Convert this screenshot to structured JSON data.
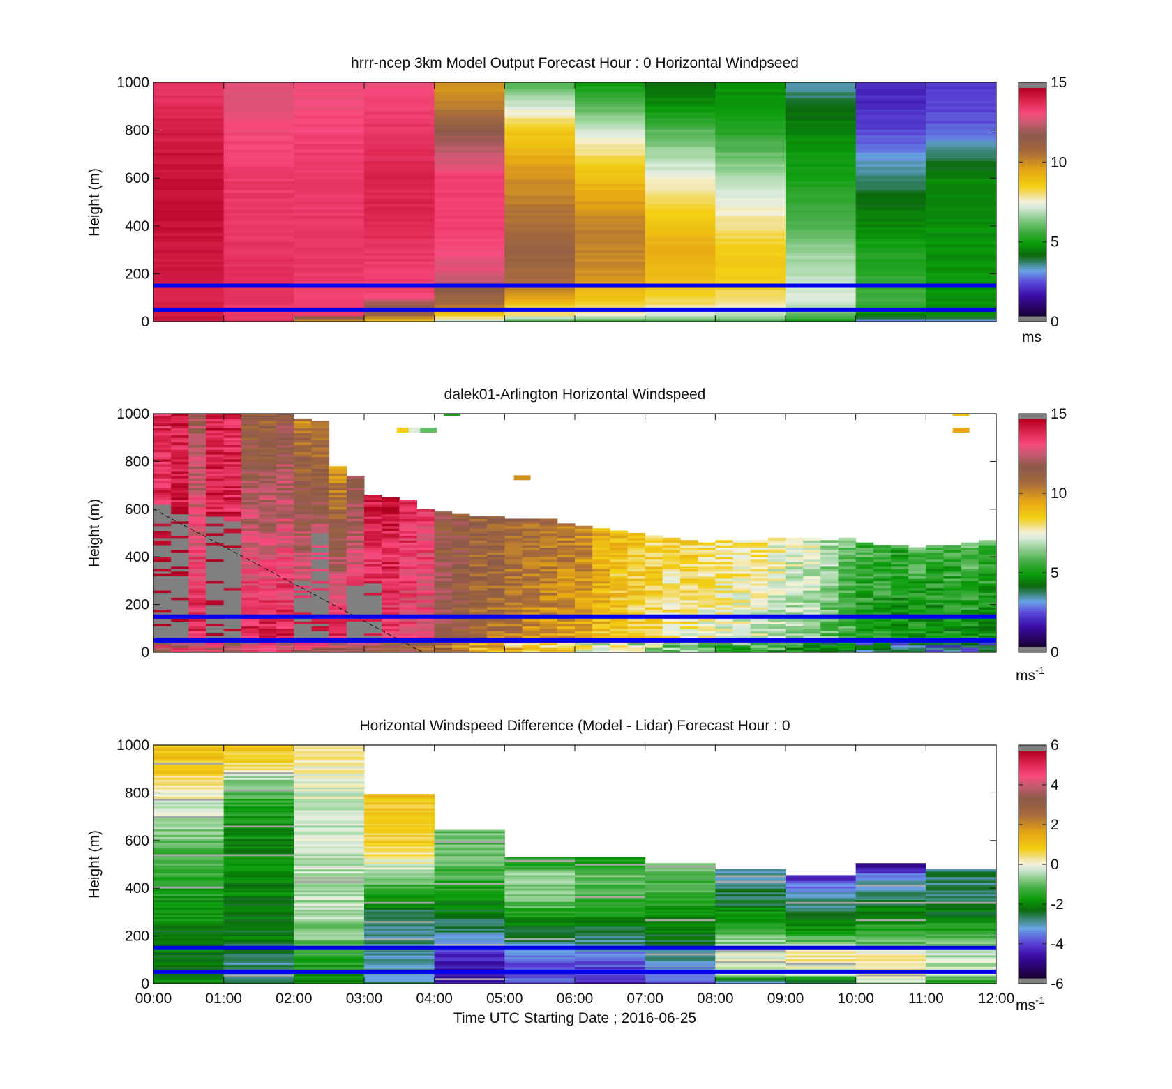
{
  "chart_data": [
    {
      "type": "heatmap",
      "title": "hrrr-ncep 3km Model Output   Forecast Hour : 0 Horizontal Windpseed",
      "ylabel": "Height (m)",
      "ylim": [
        0,
        1000
      ],
      "yticks": [
        "0",
        "200",
        "400",
        "600",
        "800",
        "1000"
      ],
      "x_start": "00:00",
      "x_end": "12:00",
      "clim": [
        0,
        15
      ],
      "cticks": [
        "0",
        "5",
        "10",
        "15"
      ],
      "colorbar_unit": "ms",
      "colorbar_unit_sup": "",
      "reference_lines_m": [
        50,
        150
      ],
      "reference_line_color": "#0000ee",
      "cmap": "wind",
      "columns": [
        [
          6,
          14.5,
          30,
          14.5,
          70,
          14.2,
          110,
          14.3,
          150,
          14.3,
          200,
          14.4,
          300,
          14.5,
          400,
          14.6,
          600,
          14.6,
          800,
          14.3,
          900,
          14.0,
          1000,
          13.8
        ],
        [
          6,
          14.0,
          30,
          13.8,
          70,
          13.7,
          110,
          13.9,
          150,
          13.9,
          200,
          14.0,
          300,
          13.9,
          400,
          13.8,
          600,
          13.7,
          800,
          13.4,
          900,
          13.0,
          1000,
          13.1
        ],
        [
          6,
          10.0,
          30,
          13.6,
          70,
          13.6,
          110,
          13.5,
          150,
          13.6,
          200,
          13.7,
          300,
          13.8,
          400,
          13.8,
          600,
          13.7,
          800,
          13.5,
          900,
          13.3,
          1000,
          13.2
        ],
        [
          6,
          9.0,
          30,
          11.2,
          70,
          12.0,
          110,
          13.5,
          150,
          13.4,
          200,
          13.6,
          300,
          13.8,
          400,
          14.1,
          600,
          14.2,
          800,
          13.8,
          900,
          13.5,
          1000,
          13.2
        ],
        [
          6,
          7.0,
          30,
          8.8,
          70,
          10.8,
          110,
          11.2,
          150,
          12.3,
          200,
          13.0,
          300,
          13.3,
          400,
          13.6,
          600,
          13.6,
          800,
          11.8,
          900,
          10.5,
          1000,
          9.8
        ],
        [
          6,
          5.8,
          30,
          8.0,
          70,
          8.6,
          110,
          9.8,
          150,
          10.6,
          200,
          11.0,
          300,
          11.3,
          400,
          10.8,
          600,
          10.0,
          800,
          8.7,
          900,
          7.2,
          1000,
          5.7
        ],
        [
          6,
          5.5,
          30,
          7.5,
          70,
          8.4,
          110,
          9.0,
          150,
          9.5,
          200,
          10.0,
          300,
          10.3,
          400,
          10.4,
          600,
          9.0,
          800,
          7.2,
          900,
          5.8,
          1000,
          4.8
        ],
        [
          6,
          5.7,
          30,
          7.0,
          70,
          8.0,
          110,
          8.5,
          150,
          8.8,
          200,
          9.1,
          300,
          9.4,
          400,
          9.0,
          600,
          7.5,
          800,
          5.8,
          900,
          4.6,
          1000,
          4.2
        ],
        [
          6,
          5.8,
          30,
          6.8,
          70,
          7.6,
          110,
          8.2,
          150,
          8.5,
          200,
          8.6,
          300,
          8.6,
          400,
          8.0,
          600,
          6.8,
          800,
          5.2,
          900,
          4.6,
          1000,
          4.6
        ],
        [
          6,
          5.0,
          30,
          5.8,
          70,
          7.0,
          110,
          7.3,
          150,
          7.1,
          200,
          6.9,
          300,
          6.5,
          400,
          5.8,
          600,
          5.0,
          800,
          4.5,
          900,
          3.9,
          1000,
          3.2
        ],
        [
          6,
          3.0,
          30,
          4.5,
          70,
          5.5,
          110,
          5.6,
          150,
          5.5,
          200,
          5.3,
          300,
          5.0,
          400,
          4.5,
          600,
          3.6,
          800,
          2.2,
          900,
          1.8,
          1000,
          1.8
        ],
        [
          6,
          3.0,
          30,
          4.5,
          70,
          4.6,
          110,
          4.6,
          150,
          4.7,
          200,
          4.7,
          300,
          4.7,
          400,
          4.6,
          600,
          4.5,
          800,
          2.5,
          900,
          2.1,
          1000,
          2.1
        ]
      ]
    },
    {
      "type": "heatmap",
      "title": "dalek01-Arlington  Horizontal Windspeed",
      "ylabel": "Height (m)",
      "ylim": [
        0,
        1000
      ],
      "yticks": [
        "0",
        "200",
        "400",
        "600",
        "800",
        "1000"
      ],
      "x_start": "00:00",
      "x_end": "12:00",
      "clim": [
        0,
        15
      ],
      "cticks": [
        "0",
        "5",
        "10",
        "15"
      ],
      "colorbar_unit": "ms",
      "colorbar_unit_sup": "-1",
      "reference_lines_m": [
        50,
        150
      ],
      "reference_line_color": "#0000ee",
      "cmap": "wind",
      "missing_color": "#808080",
      "columns_per_hour": 4,
      "column_tops_m": [
        1000,
        1000,
        1000,
        1000,
        1000,
        1000,
        1000,
        1000,
        980,
        970,
        780,
        740,
        660,
        650,
        640,
        600,
        590,
        580,
        570,
        570,
        560,
        560,
        560,
        540,
        530,
        520,
        510,
        500,
        490,
        480,
        470,
        460,
        470,
        470,
        470,
        480,
        480,
        480,
        470,
        480,
        460,
        450,
        450,
        440,
        450,
        450,
        460,
        470
      ],
      "gray_tops_m": [
        620,
        580,
        0,
        580,
        550,
        0,
        0,
        0,
        300,
        500,
        0,
        300,
        300,
        0,
        0,
        0,
        0,
        0,
        0,
        0,
        0,
        0,
        0,
        0,
        0,
        0,
        0,
        0,
        0,
        0,
        0,
        0,
        0,
        0,
        0,
        0,
        0,
        0,
        0,
        0,
        0,
        0,
        0,
        0,
        0,
        0,
        0,
        0
      ],
      "column_speed_upper": [
        13.9,
        14.3,
        12.0,
        14.3,
        14.2,
        11.3,
        11.2,
        11.6,
        10.5,
        10.5,
        10.0,
        11.7,
        14.3,
        14.5,
        13.8,
        13.6,
        11.8,
        11.6,
        11.3,
        11.3,
        11.1,
        11.0,
        10.8,
        10.6,
        10.3,
        9.5,
        8.9,
        8.6,
        8.5,
        8.3,
        8.4,
        8.2,
        8.2,
        8.1,
        7.9,
        7.6,
        7.4,
        7.3,
        6.6,
        6.2,
        5.6,
        5.5,
        5.3,
        5.8,
        5.4,
        5.6,
        5.8,
        5.6
      ],
      "column_speed_lower": [
        14.4,
        14.3,
        14.2,
        14.3,
        14.2,
        14.3,
        14.4,
        14.3,
        14.2,
        14.3,
        14.4,
        14.3,
        13.6,
        13.4,
        13.2,
        13.0,
        12.0,
        11.6,
        11.0,
        10.6,
        10.3,
        10.0,
        9.8,
        9.6,
        9.3,
        8.9,
        8.7,
        8.5,
        8.1,
        7.8,
        7.6,
        7.4,
        7.2,
        7.1,
        7.0,
        6.8,
        6.4,
        6.2,
        5.8,
        5.5,
        5.0,
        4.8,
        4.6,
        4.5,
        4.4,
        4.5,
        4.6,
        4.4
      ],
      "dashed_line_points": [
        [
          "00:00",
          600
        ],
        [
          "03:50",
          0
        ]
      ],
      "sparse_top_cells": [
        {
          "time": "03:35",
          "height_m": 930,
          "speed": 8.6
        },
        {
          "time": "03:45",
          "height_m": 930,
          "speed": 7.2
        },
        {
          "time": "03:55",
          "height_m": 930,
          "speed": 6.0
        },
        {
          "time": "05:15",
          "height_m": 730,
          "speed": 10.0
        },
        {
          "time": "04:15",
          "height_m": 1000,
          "speed": 5.0
        },
        {
          "time": "11:30",
          "height_m": 930,
          "speed": 9.6
        },
        {
          "time": "11:30",
          "height_m": 1000,
          "speed": 9.0
        }
      ]
    },
    {
      "type": "heatmap",
      "title": "Horizontal Windspeed Difference (Model - Lidar) Forecast Hour : 0",
      "ylabel": "Height (m)",
      "xlabel": "Time UTC  Starting Date ; 2016-06-25",
      "ylim": [
        0,
        1000
      ],
      "yticks": [
        "0",
        "200",
        "400",
        "600",
        "800",
        "1000"
      ],
      "xticks": [
        "00:00",
        "01:00",
        "02:00",
        "03:00",
        "04:00",
        "05:00",
        "06:00",
        "07:00",
        "08:00",
        "09:00",
        "10:00",
        "11:00",
        "12:00"
      ],
      "clim": [
        -6,
        6
      ],
      "cticks": [
        "-6",
        "-4",
        "-2",
        "0",
        "2",
        "4",
        "6"
      ],
      "colorbar_unit": "ms",
      "colorbar_unit_sup": "-1",
      "reference_lines_m": [
        50,
        150
      ],
      "reference_line_color": "#0000ee",
      "cmap": "diff",
      "column_tops_m": [
        1000,
        1000,
        1000,
        795,
        645,
        530,
        530,
        505,
        480,
        455,
        505,
        480
      ],
      "columns": [
        [
          6,
          -1.8,
          40,
          -2.2,
          100,
          -2.2,
          150,
          -2.2,
          170,
          -2.4,
          300,
          -1.9,
          450,
          -1.6,
          600,
          -1.0,
          700,
          -0.4,
          780,
          0.0,
          850,
          0.6,
          920,
          1.0,
          1000,
          1.2
        ],
        [
          6,
          -2.5,
          40,
          -2.8,
          100,
          -2.8,
          150,
          -2.8,
          170,
          -2.3,
          300,
          -2.2,
          450,
          -2.1,
          600,
          -2.0,
          750,
          -1.6,
          860,
          -0.5,
          920,
          0.6,
          1000,
          1.1
        ],
        [
          6,
          -2.0,
          40,
          -1.8,
          100,
          -1.6,
          150,
          -1.4,
          170,
          -1.0,
          300,
          -0.5,
          450,
          -0.4,
          600,
          -0.3,
          750,
          -0.2,
          860,
          0.0,
          920,
          0.2,
          1000,
          0.5
        ],
        [
          6,
          -3.0,
          40,
          -3.3,
          100,
          -3.1,
          150,
          -2.9,
          170,
          -3.0,
          300,
          -2.6,
          450,
          -0.6,
          520,
          0.2,
          600,
          0.8,
          700,
          1.0,
          795,
          1.1
        ],
        [
          6,
          -4.8,
          40,
          -4.8,
          100,
          -4.6,
          150,
          -4.2,
          170,
          -3.3,
          250,
          -2.7,
          350,
          -2.0,
          450,
          -1.3,
          550,
          -1.0,
          645,
          -0.9
        ],
        [
          6,
          -3.8,
          40,
          -3.9,
          100,
          -4.0,
          150,
          -3.6,
          170,
          -3.0,
          250,
          -2.0,
          350,
          -1.0,
          450,
          -0.4,
          530,
          -2.0
        ],
        [
          6,
          -4.5,
          40,
          -4.3,
          100,
          -3.8,
          150,
          -3.4,
          170,
          -3.0,
          250,
          -2.2,
          350,
          -1.5,
          450,
          -1.0,
          530,
          -1.8
        ],
        [
          6,
          -4.0,
          40,
          -3.6,
          100,
          -3.0,
          150,
          -2.6,
          170,
          -2.4,
          250,
          -2.0,
          350,
          -1.5,
          450,
          -1.2,
          505,
          -0.8
        ],
        [
          6,
          -3.2,
          40,
          -0.2,
          100,
          0.0,
          150,
          -0.3,
          170,
          -0.6,
          250,
          -1.4,
          350,
          -2.6,
          450,
          -3.0,
          480,
          -3.0
        ],
        [
          6,
          -2.8,
          40,
          -0.4,
          100,
          0.4,
          150,
          0.2,
          170,
          -0.8,
          250,
          -2.0,
          350,
          -3.0,
          420,
          -4.0,
          455,
          -4.4
        ],
        [
          6,
          -0.6,
          40,
          0.6,
          100,
          0.2,
          150,
          -0.2,
          170,
          -0.8,
          250,
          -1.6,
          350,
          -2.6,
          450,
          -3.6,
          505,
          -5.4
        ],
        [
          6,
          -1.8,
          40,
          -0.4,
          100,
          -0.3,
          150,
          -0.6,
          170,
          -1.0,
          250,
          -1.8,
          350,
          -2.6,
          450,
          -2.8,
          480,
          -2.8
        ]
      ]
    }
  ]
}
